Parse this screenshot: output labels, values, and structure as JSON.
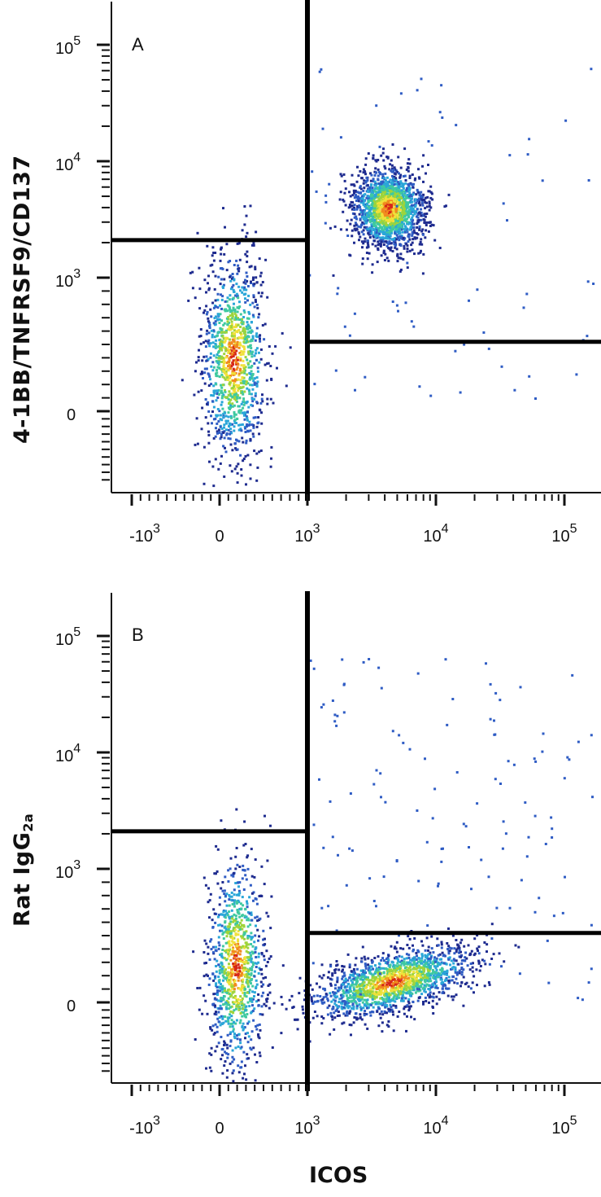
{
  "chart_data": [
    {
      "type": "scatter",
      "panel_label": "A",
      "ylabel": "4-1BB/TNFRSF9/CD137",
      "xlabel": "",
      "x_ticks": [
        {
          "base": "-10",
          "exp": "3",
          "value": -1000
        },
        {
          "base": "0",
          "exp": "",
          "value": 0
        },
        {
          "base": "10",
          "exp": "3",
          "value": 1000
        },
        {
          "base": "10",
          "exp": "4",
          "value": 10000
        },
        {
          "base": "10",
          "exp": "5",
          "value": 100000
        }
      ],
      "y_ticks": [
        {
          "base": "0",
          "exp": "",
          "value": 0
        },
        {
          "base": "10",
          "exp": "3",
          "value": 1000
        },
        {
          "base": "10",
          "exp": "4",
          "value": 10000
        },
        {
          "base": "10",
          "exp": "5",
          "value": 100000
        }
      ],
      "x_scale": "biexponential",
      "y_scale": "biexponential",
      "xlim": [
        -1500,
        200000
      ],
      "ylim": [
        -1500,
        250000
      ],
      "gates": {
        "vertical_x": 1000,
        "left_horizontal_y": 2100,
        "right_horizontal_y": 520
      },
      "populations": [
        {
          "x": 150,
          "y": 400,
          "sx": 0.09,
          "sy": 0.28,
          "n": 1100
        },
        {
          "x": 4200,
          "y": 4000,
          "sx": 0.1,
          "sy": 0.11,
          "n": 1700
        }
      ],
      "color_scale": [
        "#1e2b8f",
        "#2f5cc4",
        "#2aa6d8",
        "#3fc9a0",
        "#9ed43b",
        "#f0e13a",
        "#f08a1e",
        "#d62718"
      ],
      "grid": false
    },
    {
      "type": "scatter",
      "panel_label": "B",
      "ylabel": "Rat IgG",
      "ylabel_subscript": "2a",
      "xlabel": "ICOS",
      "x_ticks": [
        {
          "base": "-10",
          "exp": "3",
          "value": -1000
        },
        {
          "base": "0",
          "exp": "",
          "value": 0
        },
        {
          "base": "10",
          "exp": "3",
          "value": 1000
        },
        {
          "base": "10",
          "exp": "4",
          "value": 10000
        },
        {
          "base": "10",
          "exp": "5",
          "value": 100000
        }
      ],
      "y_ticks": [
        {
          "base": "0",
          "exp": "",
          "value": 0
        },
        {
          "base": "10",
          "exp": "3",
          "value": 1000
        },
        {
          "base": "10",
          "exp": "4",
          "value": 10000
        },
        {
          "base": "10",
          "exp": "5",
          "value": 100000
        }
      ],
      "x_scale": "biexponential",
      "y_scale": "biexponential",
      "xlim": [
        -1500,
        200000
      ],
      "ylim": [
        -1500,
        250000
      ],
      "gates": {
        "vertical_x": 1000,
        "left_horizontal_y": 2100,
        "right_horizontal_y": 520
      },
      "populations": [
        {
          "x": 180,
          "y": 280,
          "sx": 0.08,
          "sy": 0.3,
          "n": 1000
        },
        {
          "x": 4500,
          "y": 160,
          "sx": 0.12,
          "sy": 0.05,
          "n": 1600
        }
      ],
      "color_scale": [
        "#1e2b8f",
        "#2f5cc4",
        "#2aa6d8",
        "#3fc9a0",
        "#9ed43b",
        "#f0e13a",
        "#f08a1e",
        "#d62718"
      ],
      "grid": false
    }
  ]
}
